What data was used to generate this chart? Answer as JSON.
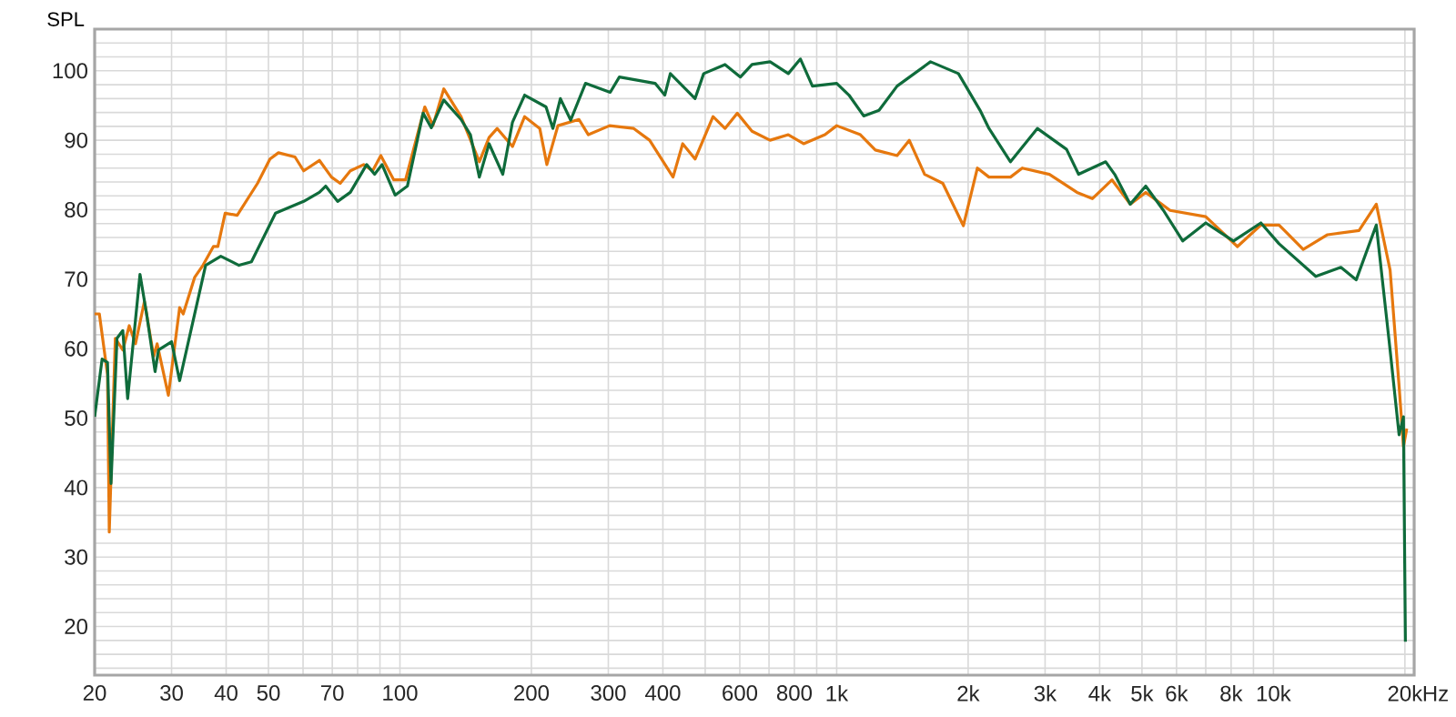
{
  "chart_data": {
    "type": "line",
    "ylabel": "SPL",
    "log": "x",
    "xlim": [
      20,
      21000
    ],
    "ylim": [
      13,
      106
    ],
    "xticks": [
      20,
      30,
      40,
      50,
      {
        "value": 60,
        "label": null
      },
      70,
      {
        "value": 80,
        "label": null
      },
      {
        "value": 90,
        "label": null
      },
      100,
      200,
      300,
      400,
      {
        "value": 500,
        "label": null
      },
      600,
      {
        "value": 700,
        "label": null
      },
      800,
      {
        "value": 900,
        "label": null
      },
      {
        "value": 1000,
        "label": "1k"
      },
      {
        "value": 2000,
        "label": "2k"
      },
      {
        "value": 3000,
        "label": "3k"
      },
      {
        "value": 4000,
        "label": "4k"
      },
      {
        "value": 5000,
        "label": "5k"
      },
      {
        "value": 6000,
        "label": "6k"
      },
      {
        "value": 7000,
        "label": null
      },
      {
        "value": 8000,
        "label": "8k"
      },
      {
        "value": 9000,
        "label": null
      },
      {
        "value": 10000,
        "label": "10k"
      },
      {
        "value": 20000,
        "label": "20k"
      }
    ],
    "xlabel": "Hz",
    "yticks": [
      {
        "value": 14,
        "label": null
      },
      {
        "value": 16,
        "label": null
      },
      {
        "value": 18,
        "label": null
      },
      20,
      {
        "value": 22,
        "label": null
      },
      {
        "value": 24,
        "label": null
      },
      {
        "value": 26,
        "label": null
      },
      {
        "value": 28,
        "label": null
      },
      30,
      {
        "value": 32,
        "label": null
      },
      {
        "value": 34,
        "label": null
      },
      {
        "value": 36,
        "label": null
      },
      {
        "value": 38,
        "label": null
      },
      40,
      {
        "value": 42,
        "label": null
      },
      {
        "value": 44,
        "label": null
      },
      {
        "value": 46,
        "label": null
      },
      {
        "value": 48,
        "label": null
      },
      50,
      {
        "value": 52,
        "label": null
      },
      {
        "value": 54,
        "label": null
      },
      {
        "value": 56,
        "label": null
      },
      {
        "value": 58,
        "label": null
      },
      60,
      {
        "value": 62,
        "label": null
      },
      {
        "value": 64,
        "label": null
      },
      {
        "value": 66,
        "label": null
      },
      {
        "value": 68,
        "label": null
      },
      70,
      {
        "value": 72,
        "label": null
      },
      {
        "value": 74,
        "label": null
      },
      {
        "value": 76,
        "label": null
      },
      {
        "value": 78,
        "label": null
      },
      80,
      {
        "value": 82,
        "label": null
      },
      {
        "value": 84,
        "label": null
      },
      {
        "value": 86,
        "label": null
      },
      {
        "value": 88,
        "label": null
      },
      90,
      {
        "value": 92,
        "label": null
      },
      {
        "value": 94,
        "label": null
      },
      {
        "value": 96,
        "label": null
      },
      {
        "value": 98,
        "label": null
      },
      100,
      {
        "value": 102,
        "label": null
      },
      {
        "value": 104,
        "label": null
      }
    ],
    "grid": true,
    "marker": "none",
    "line_style": "solid",
    "series": [
      {
        "color": "#e6780e",
        "x": [
          20,
          20.5,
          21.4,
          21.6,
          22.3,
          23.2,
          24,
          24.8,
          26,
          27.3,
          27.8,
          29.5,
          31.3,
          31.9,
          33.9,
          35.4,
          37.4,
          38.3,
          39.8,
          42.4,
          47.2,
          50.4,
          52.7,
          57.5,
          60.2,
          65.4,
          69.7,
          73,
          77,
          82.6,
          86.6,
          90.4,
          96.8,
          103,
          114,
          119,
          126,
          138,
          152,
          160,
          167,
          181,
          193,
          209,
          217,
          230,
          257,
          270,
          302,
          343,
          373,
          422,
          444,
          474,
          521,
          555,
          592,
          640,
          704,
          775,
          840,
          940,
          1000,
          1133,
          1226,
          1375,
          1466,
          1590,
          1750,
          1950,
          2100,
          2232,
          2500,
          2660,
          3070,
          3550,
          3850,
          4270,
          4700,
          5100,
          5800,
          7000,
          8270,
          9360,
          10300,
          11700,
          13300,
          15700,
          17200,
          18500,
          19400,
          19850,
          20200
        ],
        "values": [
          65,
          65,
          56.3,
          33.6,
          61.5,
          59.8,
          63.3,
          60.7,
          66.8,
          58.9,
          60.7,
          53.3,
          65.9,
          65,
          70.3,
          72,
          74.7,
          74.7,
          79.5,
          79.2,
          83.8,
          87.3,
          88.2,
          87.6,
          85.6,
          87.1,
          84.7,
          83.8,
          85.6,
          86.5,
          85.6,
          87.8,
          84.3,
          84.3,
          94.8,
          92.1,
          97.4,
          93.4,
          86.9,
          90.4,
          91.7,
          89.1,
          93.4,
          91.7,
          86.5,
          92.1,
          93,
          90.8,
          92.1,
          91.7,
          90,
          84.7,
          89.5,
          87.3,
          93.4,
          91.7,
          93.9,
          91.3,
          90,
          90.8,
          89.5,
          90.8,
          92.1,
          90.8,
          88.6,
          87.8,
          90,
          85.1,
          83.8,
          77.7,
          86,
          84.7,
          84.7,
          86,
          85.1,
          82.5,
          81.6,
          84.3,
          80.8,
          82.5,
          79.9,
          79,
          74.7,
          77.8,
          77.8,
          74.3,
          76.4,
          77,
          80.8,
          71.3,
          54.6,
          45.9,
          48.5
        ]
      },
      {
        "color": "#0f6b3b",
        "x": [
          20,
          20.8,
          21.4,
          21.8,
          22.5,
          23.2,
          23.8,
          25.4,
          26.3,
          27.5,
          28,
          30,
          31.3,
          35.9,
          38.9,
          42.8,
          45.7,
          51.9,
          60.2,
          65.4,
          67.6,
          72,
          77,
          83.9,
          87.5,
          91,
          97.5,
          104,
          113,
          118,
          126,
          138,
          145,
          152,
          160,
          172,
          181,
          193,
          216,
          224,
          233,
          246,
          266,
          303,
          318,
          384,
          404,
          416,
          474,
          496,
          555,
          602,
          640,
          704,
          775,
          826,
          880,
          1000,
          1067,
          1153,
          1250,
          1375,
          1640,
          1900,
          2130,
          2232,
          2500,
          2880,
          3360,
          3580,
          4130,
          4330,
          4700,
          5100,
          5600,
          6200,
          7000,
          8100,
          9360,
          10300,
          12500,
          14270,
          15470,
          17200,
          18500,
          19400,
          19850,
          20050
        ],
        "values": [
          50.2,
          58.5,
          58,
          40.6,
          61.5,
          62.6,
          52.8,
          70.7,
          65,
          56.7,
          59.8,
          61,
          55.4,
          72,
          73.3,
          72,
          72.5,
          79.5,
          81.2,
          82.5,
          83.4,
          81.2,
          82.5,
          86.5,
          85.1,
          86.5,
          82.1,
          83.4,
          93.9,
          91.8,
          95.8,
          93,
          90.8,
          84.7,
          89.5,
          85.1,
          92.6,
          96.5,
          94.8,
          91.7,
          96,
          92.9,
          98.2,
          96.9,
          99.1,
          98.2,
          96.5,
          99.6,
          96,
          99.6,
          100.9,
          99.1,
          100.9,
          101.3,
          99.6,
          101.7,
          97.8,
          98.2,
          96.5,
          93.5,
          94.3,
          97.8,
          101.3,
          99.6,
          94.3,
          91.7,
          86.9,
          91.7,
          88.7,
          85.1,
          86.9,
          85.1,
          80.8,
          83.4,
          79.9,
          75.5,
          78.1,
          75.5,
          78.1,
          75.1,
          70.4,
          71.7,
          69.9,
          77.8,
          59.8,
          47.6,
          50.2,
          17.8
        ]
      }
    ]
  }
}
